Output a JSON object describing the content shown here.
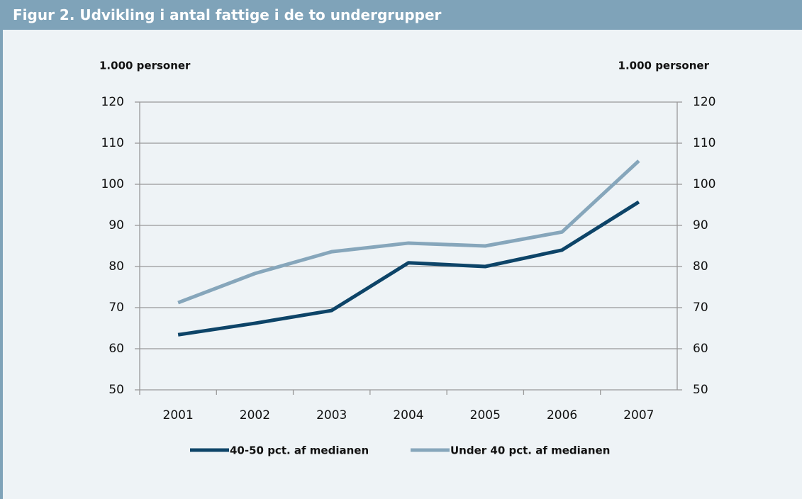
{
  "header": {
    "title": "Figur 2. Udvikling i antal fattige i de to undergrupper"
  },
  "chart_data": {
    "type": "line",
    "y_label": "1.000 personer",
    "y2_label": "1.000 personer",
    "categories": [
      "2001",
      "2002",
      "2003",
      "2004",
      "2005",
      "2006",
      "2007"
    ],
    "series": [
      {
        "name": "40-50 pct. af medianen",
        "color": "#0d4468",
        "values": [
          63.4,
          66.2,
          69.3,
          80.9,
          80.0,
          84.0,
          95.7
        ]
      },
      {
        "name": "Under 40 pct. af medianen",
        "color": "#86a6bb",
        "values": [
          71.2,
          78.3,
          83.6,
          85.7,
          85.0,
          88.4,
          105.7
        ]
      }
    ],
    "ylim": [
      50,
      120
    ],
    "yticks": [
      50,
      60,
      70,
      80,
      90,
      100,
      110,
      120
    ],
    "y2lim": [
      50,
      120
    ],
    "y2ticks": [
      50,
      60,
      70,
      80,
      90,
      100,
      110,
      120
    ],
    "grid": true,
    "legend": "bottom"
  }
}
